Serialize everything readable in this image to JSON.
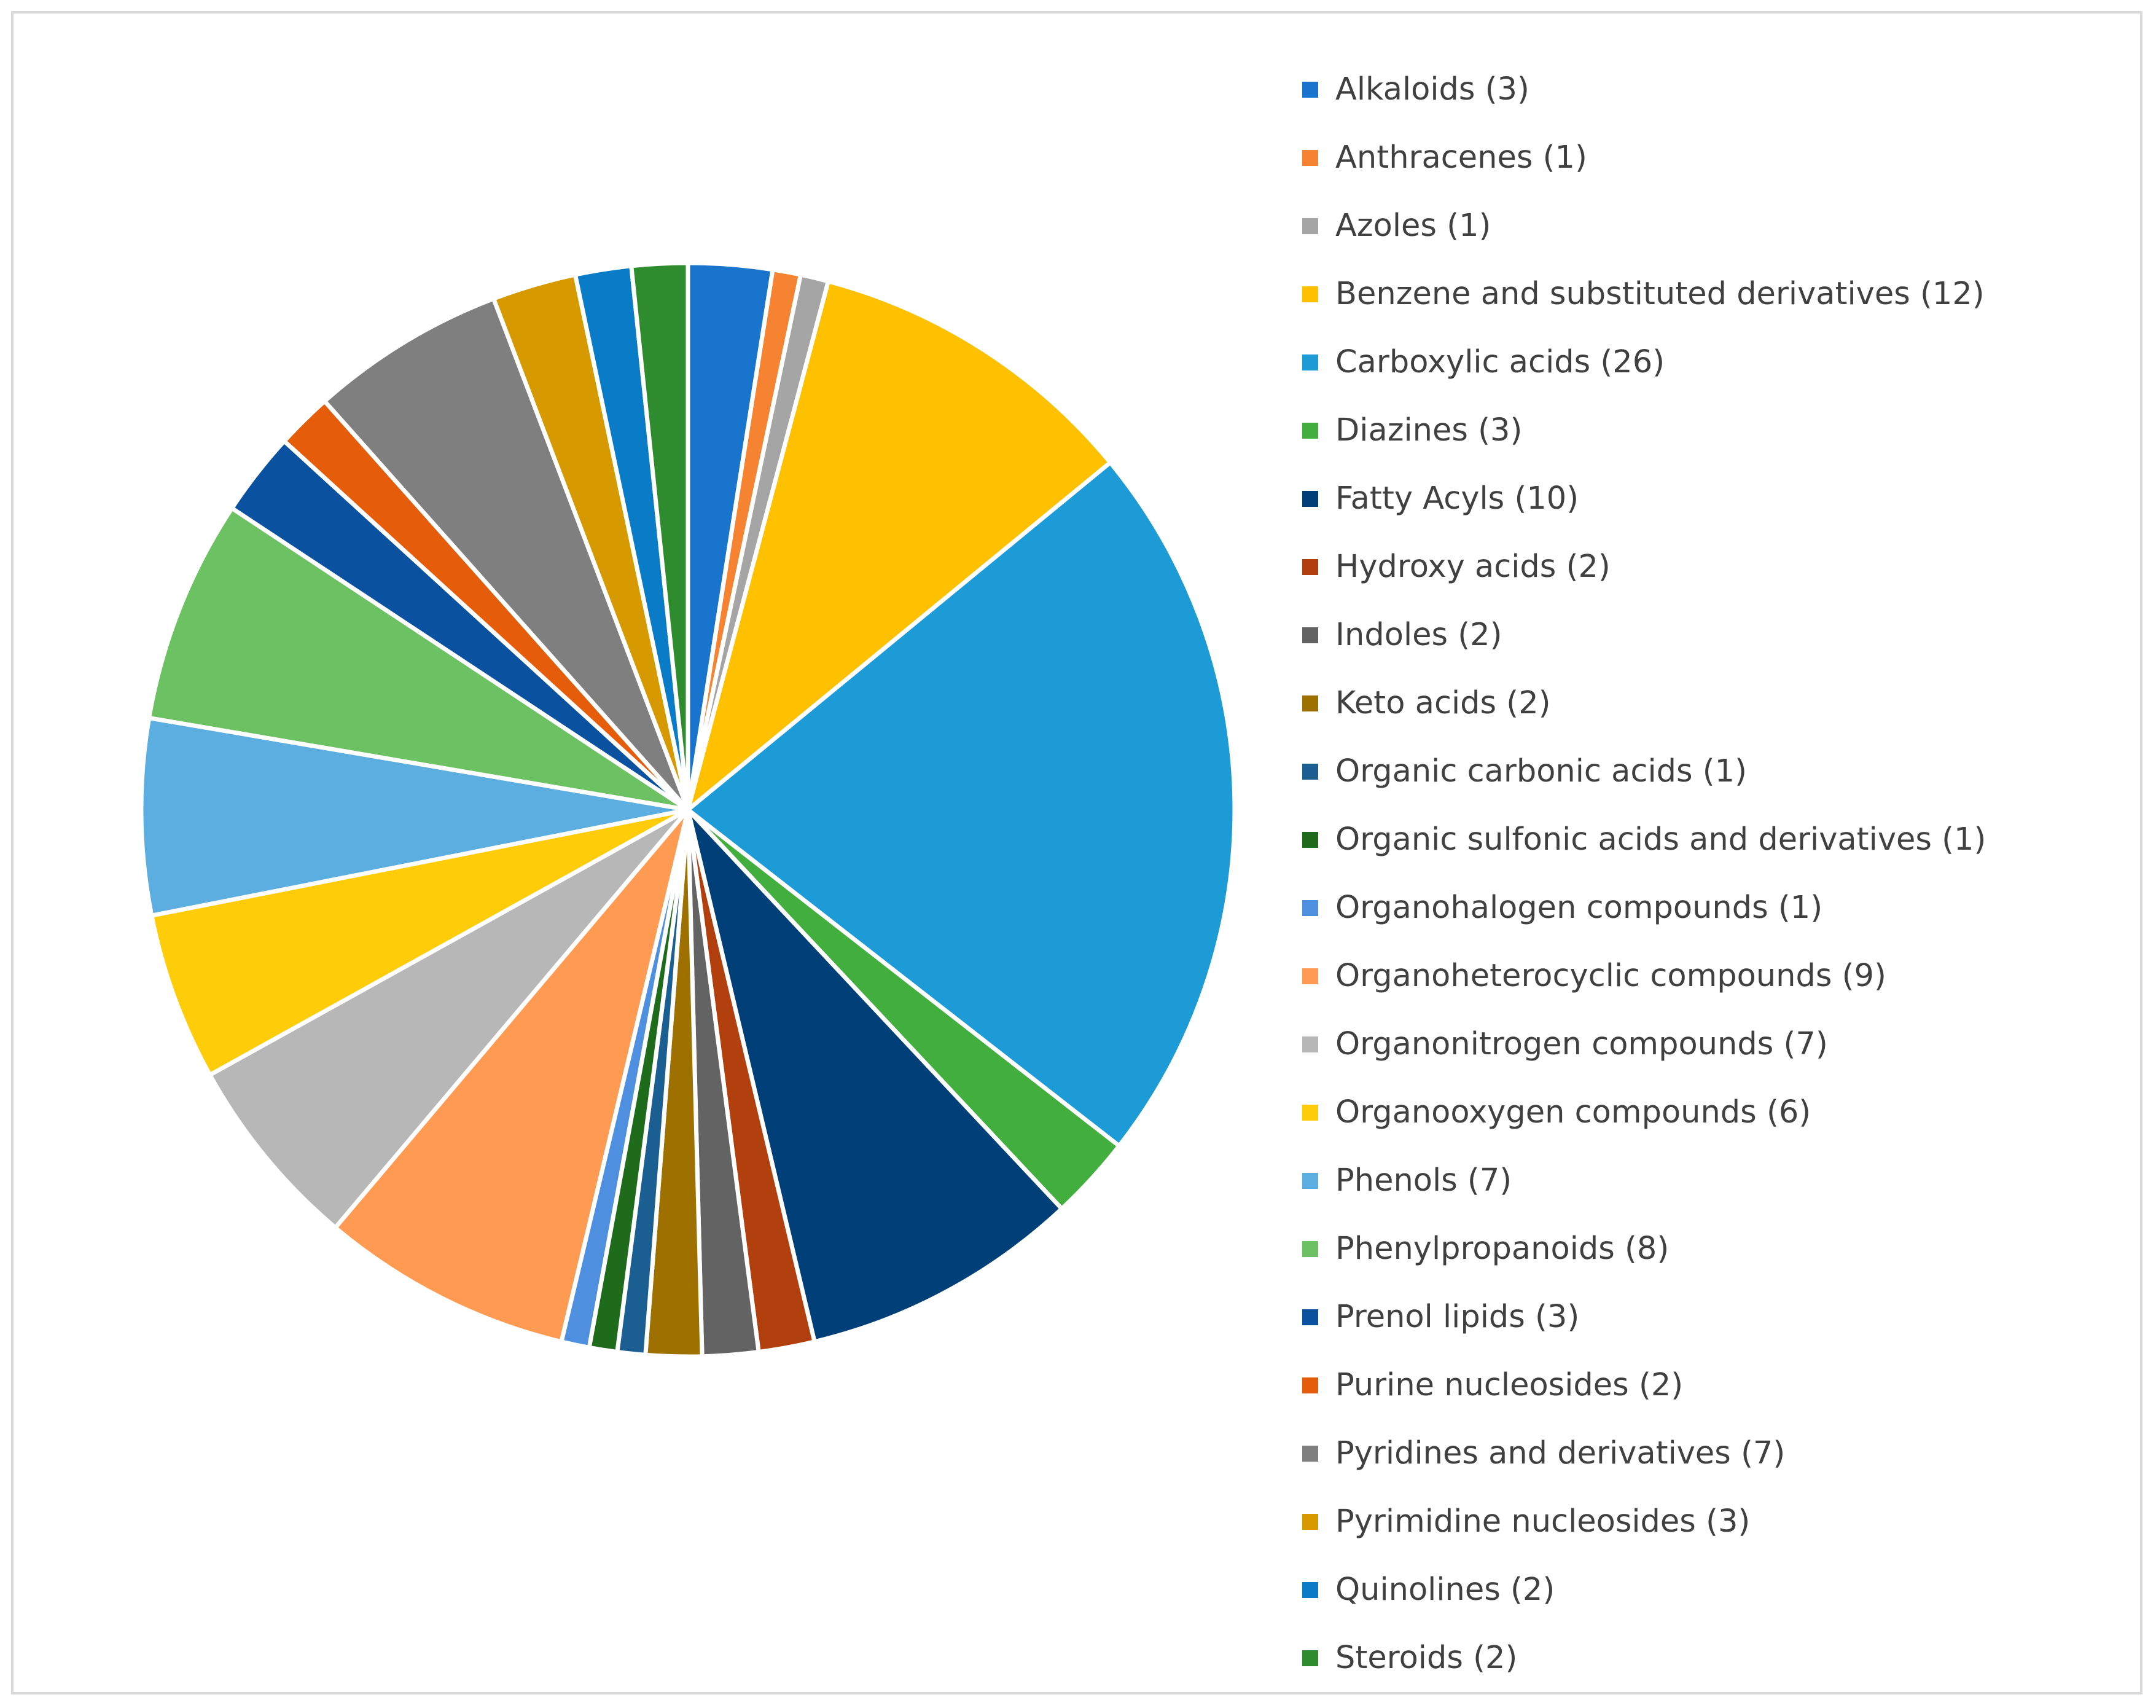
{
  "chart_data": {
    "type": "pie",
    "title": "",
    "legend_position": "right",
    "start_angle_deg": 0,
    "direction": "clockwise",
    "slices": [
      {
        "label": "Alkaloids (3)",
        "name": "Alkaloids",
        "value": 3,
        "color": "#1874CD"
      },
      {
        "label": "Anthracenes (1)",
        "name": "Anthracenes",
        "value": 1,
        "color": "#F58331"
      },
      {
        "label": "Azoles (1)",
        "name": "Azoles",
        "value": 1,
        "color": "#A5A5A5"
      },
      {
        "label": "Benzene and substituted derivatives (12)",
        "name": "Benzene and substituted derivatives",
        "value": 12,
        "color": "#FFC000"
      },
      {
        "label": "Carboxylic acids (26)",
        "name": "Carboxylic acids",
        "value": 26,
        "color": "#1C9BD7"
      },
      {
        "label": "Diazines (3)",
        "name": "Diazines",
        "value": 3,
        "color": "#42AE3E"
      },
      {
        "label": "Fatty Acyls (10)",
        "name": "Fatty Acyls",
        "value": 10,
        "color": "#003F78"
      },
      {
        "label": "Hydroxy acids (2)",
        "name": "Hydroxy acids",
        "value": 2,
        "color": "#B2400E"
      },
      {
        "label": "Indoles (2)",
        "name": "Indoles",
        "value": 2,
        "color": "#636363"
      },
      {
        "label": "Keto acids (2)",
        "name": "Keto acids",
        "value": 2,
        "color": "#9E7000"
      },
      {
        "label": "Organic carbonic acids (1)",
        "name": "Organic carbonic acids",
        "value": 1,
        "color": "#1B5E91"
      },
      {
        "label": "Organic sulfonic acids and derivatives (1)",
        "name": "Organic sulfonic acids and derivatives",
        "value": 1,
        "color": "#1F6B1C"
      },
      {
        "label": "Organohalogen compounds (1)",
        "name": "Organohalogen compounds",
        "value": 1,
        "color": "#4F8FE0"
      },
      {
        "label": "Organoheterocyclic compounds (9)",
        "name": "Organoheterocyclic compounds",
        "value": 9,
        "color": "#FF9A52"
      },
      {
        "label": "Organonitrogen compounds (7)",
        "name": "Organonitrogen compounds",
        "value": 7,
        "color": "#B7B7B7"
      },
      {
        "label": "Organooxygen compounds (6)",
        "name": "Organooxygen compounds",
        "value": 6,
        "color": "#FFCC0A"
      },
      {
        "label": "Phenols (7)",
        "name": "Phenols",
        "value": 7,
        "color": "#5DAEE0"
      },
      {
        "label": "Phenylpropanoids (8)",
        "name": "Phenylpropanoids",
        "value": 8,
        "color": "#6CC162"
      },
      {
        "label": "Prenol lipids (3)",
        "name": "Prenol lipids",
        "value": 3,
        "color": "#0A52A0"
      },
      {
        "label": "Purine nucleosides (2)",
        "name": "Purine nucleosides",
        "value": 2,
        "color": "#E55C0A"
      },
      {
        "label": "Pyridines and derivatives (7)",
        "name": "Pyridines and derivatives",
        "value": 7,
        "color": "#7F7F7F"
      },
      {
        "label": "Pyrimidine nucleosides (3)",
        "name": "Pyrimidine nucleosides",
        "value": 3,
        "color": "#D69A00"
      },
      {
        "label": "Quinolines (2)",
        "name": "Quinolines",
        "value": 2,
        "color": "#0A7CC7"
      },
      {
        "label": "Steroids (2)",
        "name": "Steroids",
        "value": 2,
        "color": "#2E8B2E"
      }
    ]
  }
}
